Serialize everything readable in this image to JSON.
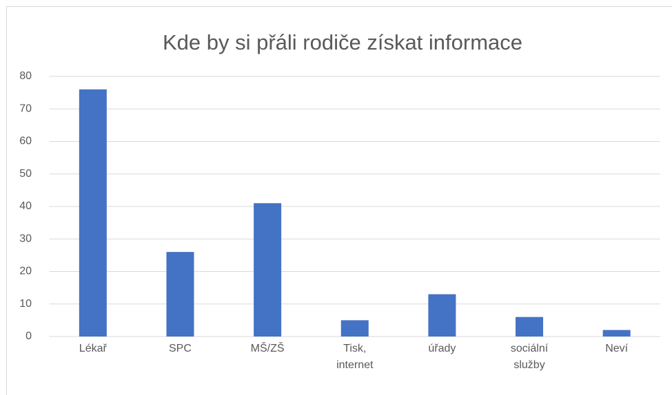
{
  "chart_data": {
    "type": "bar",
    "title": "Kde by si přáli rodiče získat informace",
    "categories": [
      "Lékař",
      "SPC",
      "MŠ/ZŠ",
      "Tisk, internet",
      "úřady",
      "sociální služby",
      "Neví"
    ],
    "values": [
      76,
      26,
      41,
      5,
      13,
      6,
      2
    ],
    "color": "#4472c4",
    "ylim": [
      0,
      80
    ],
    "yticks": [
      0,
      10,
      20,
      30,
      40,
      50,
      60,
      70,
      80
    ],
    "grid": true
  }
}
